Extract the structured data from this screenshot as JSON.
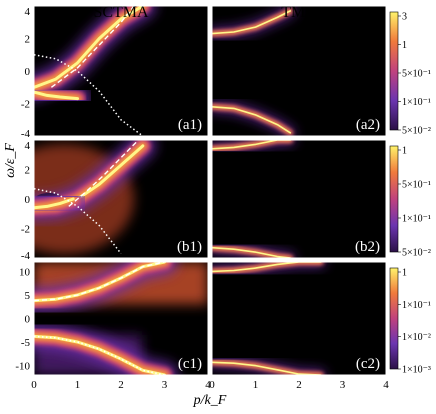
{
  "chart_data": {
    "type": "heatmap",
    "columns": [
      "SCTMA",
      "TMA"
    ],
    "xlabel": "p/k_F",
    "ylabel": "ω/ε_F",
    "xlim": [
      0,
      4
    ],
    "x_ticks": [
      "0",
      "1",
      "2",
      "3",
      "4"
    ],
    "rows": [
      {
        "ylim": [
          -4,
          4
        ],
        "y_ticks": [
          "4",
          "2",
          "0",
          "-2",
          "-4"
        ],
        "panels": [
          {
            "label": "(a1)",
            "upper_branch": {
              "x": [
                0,
                0.5,
                1.0,
                1.5,
                2.0,
                2.5
              ],
              "y": [
                -1.0,
                -0.5,
                0.5,
                2.0,
                3.2,
                4.0
              ]
            },
            "lower_branch": {
              "x": [
                0,
                0.3,
                0.6,
                1.0
              ],
              "y": [
                -1.3,
                -1.5,
                -1.6,
                -1.7
              ]
            },
            "dashed_curve": {
              "x": [
                0.4,
                1.0,
                1.5,
                2.0,
                2.3
              ],
              "y": [
                -1.0,
                0.2,
                1.6,
                3.0,
                4.0
              ]
            },
            "dotted_curve": {
              "x": [
                0,
                0.5,
                1.0,
                1.5,
                2.0,
                2.5
              ],
              "y": [
                1.0,
                0.75,
                0.0,
                -1.25,
                -3.0,
                -4.0
              ]
            }
          },
          {
            "label": "(a2)",
            "upper_branch": {
              "x": [
                0,
                0.5,
                1.0,
                1.5,
                1.8
              ],
              "y": [
                2.3,
                2.4,
                2.7,
                3.3,
                3.7
              ]
            },
            "lower_branch": {
              "x": [
                0,
                0.5,
                1.0,
                1.5,
                1.8
              ],
              "y": [
                -2.2,
                -2.3,
                -2.7,
                -3.3,
                -3.8
              ]
            }
          }
        ],
        "colorbar": {
          "ticks": [
            "3",
            "1",
            "5×10⁻¹",
            "1×10⁻¹",
            "5×10⁻²"
          ]
        }
      },
      {
        "ylim": [
          -4,
          4
        ],
        "y_ticks": [
          "4",
          "2",
          "0",
          "-2",
          "-4"
        ],
        "panels": [
          {
            "label": "(b1)",
            "upper_branch": {
              "x": [
                0,
                0.5,
                1.0,
                1.5,
                2.0,
                2.5
              ],
              "y": [
                -0.6,
                -0.5,
                0.0,
                1.0,
                2.3,
                3.6
              ]
            },
            "lower_branch": {
              "x": [
                0,
                0.3,
                0.6,
                0.9
              ],
              "y": [
                -0.6,
                -0.5,
                -0.3,
                0.0
              ]
            },
            "dashed_curve": {
              "x": [
                0.8,
                1.2,
                1.6,
                2.0,
                2.4
              ],
              "y": [
                -0.5,
                0.5,
                1.6,
                2.8,
                4.0
              ]
            },
            "dotted_curve": {
              "x": [
                0,
                0.5,
                1.0,
                1.5,
                2.0
              ],
              "y": [
                0.7,
                0.4,
                -0.5,
                -1.8,
                -3.7
              ]
            }
          },
          {
            "label": "(b2)",
            "upper_branch": {
              "x": [
                0,
                0.5,
                1.0,
                1.5,
                1.8
              ],
              "y": [
                3.4,
                3.5,
                3.7,
                4.0,
                4.0
              ]
            },
            "lower_branch": {
              "x": [
                0,
                0.5,
                1.0,
                1.5,
                1.8
              ],
              "y": [
                -3.3,
                -3.4,
                -3.6,
                -3.9,
                -4.0
              ]
            }
          }
        ],
        "colorbar": {
          "ticks": [
            "1",
            "5×10⁻¹",
            "1×10⁻¹",
            "5×10⁻²"
          ]
        }
      },
      {
        "ylim": [
          -12,
          12
        ],
        "y_ticks": [
          "10",
          "5",
          "0",
          "-5",
          "-10"
        ],
        "panels": [
          {
            "label": "(c1)",
            "upper_branch": {
              "x": [
                0,
                0.5,
                1.0,
                1.5,
                2.0,
                2.5,
                3.0
              ],
              "y": [
                3.8,
                4.1,
                5.0,
                6.5,
                8.6,
                11.0,
                12.0
              ]
            },
            "lower_branch": {
              "x": [
                0,
                0.5,
                1.0,
                1.5,
                2.0,
                2.5,
                3.0
              ],
              "y": [
                -3.8,
                -4.1,
                -5.0,
                -6.5,
                -8.6,
                -11.0,
                -12.0
              ]
            },
            "dashed_curve": {
              "x": [
                0,
                0.5,
                1.0,
                1.5,
                2.0,
                2.5,
                3.0
              ],
              "y": [
                3.8,
                4.1,
                5.0,
                6.5,
                8.6,
                11.0,
                12.0
              ]
            },
            "dotted_curve": {
              "x": [
                0,
                0.5,
                1.0,
                1.5,
                2.0,
                2.5,
                3.0
              ],
              "y": [
                -3.8,
                -4.1,
                -5.0,
                -6.5,
                -8.6,
                -11.0,
                -12.0
              ]
            }
          },
          {
            "label": "(c2)",
            "upper_branch": {
              "x": [
                0,
                0.5,
                1.0,
                1.5,
                2.0,
                2.5
              ],
              "y": [
                10.0,
                10.2,
                10.7,
                11.5,
                12.0,
                12.0
              ]
            },
            "lower_branch": {
              "x": [
                0,
                0.5,
                1.0,
                1.5,
                2.0,
                2.5
              ],
              "y": [
                -9.3,
                -9.5,
                -10.0,
                -10.9,
                -11.8,
                -12.0
              ]
            }
          }
        ],
        "colorbar": {
          "ticks": [
            "1",
            "1×10⁻¹",
            "1×10⁻²",
            "1×10⁻³"
          ]
        }
      }
    ]
  }
}
